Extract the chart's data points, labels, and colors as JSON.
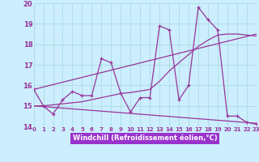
{
  "xlabel": "Windchill (Refroidissement éolien,°C)",
  "bg_color": "#cceeff",
  "line_color": "#993399",
  "grid_color": "#aadddd",
  "xlabel_bg": "#9933cc",
  "xlabel_fg": "#ffffff",
  "xlim": [
    0,
    23
  ],
  "ylim": [
    14,
    20
  ],
  "yticks": [
    14,
    15,
    16,
    17,
    18,
    19,
    20
  ],
  "xticks": [
    0,
    1,
    2,
    3,
    4,
    5,
    6,
    7,
    8,
    9,
    10,
    11,
    12,
    13,
    14,
    15,
    16,
    17,
    18,
    19,
    20,
    21,
    22,
    23
  ],
  "main_x": [
    0,
    1,
    2,
    3,
    4,
    5,
    6,
    7,
    8,
    9,
    10,
    11,
    12,
    13,
    14,
    15,
    16,
    17,
    18,
    19,
    20,
    21,
    22,
    23
  ],
  "main_y": [
    15.8,
    15.0,
    14.6,
    15.3,
    15.7,
    15.5,
    15.5,
    17.3,
    17.1,
    15.6,
    14.7,
    15.4,
    15.4,
    18.9,
    18.7,
    15.3,
    16.0,
    19.8,
    19.2,
    18.7,
    14.5,
    14.5,
    14.2,
    14.1
  ],
  "trend1_x": [
    0,
    1,
    2,
    3,
    4,
    5,
    6,
    7,
    8,
    9,
    10,
    11,
    12,
    13,
    14,
    15,
    16,
    17,
    18,
    19,
    20,
    21,
    22,
    23
  ],
  "trend1_y": [
    15.0,
    15.0,
    15.05,
    15.1,
    15.15,
    15.2,
    15.3,
    15.4,
    15.5,
    15.6,
    15.65,
    15.72,
    15.8,
    16.2,
    16.7,
    17.1,
    17.5,
    17.9,
    18.2,
    18.45,
    18.5,
    18.5,
    18.45,
    18.4
  ],
  "line2_x": [
    0,
    23
  ],
  "line2_y": [
    15.0,
    14.15
  ],
  "line3_x": [
    0,
    23
  ],
  "line3_y": [
    15.8,
    18.5
  ]
}
